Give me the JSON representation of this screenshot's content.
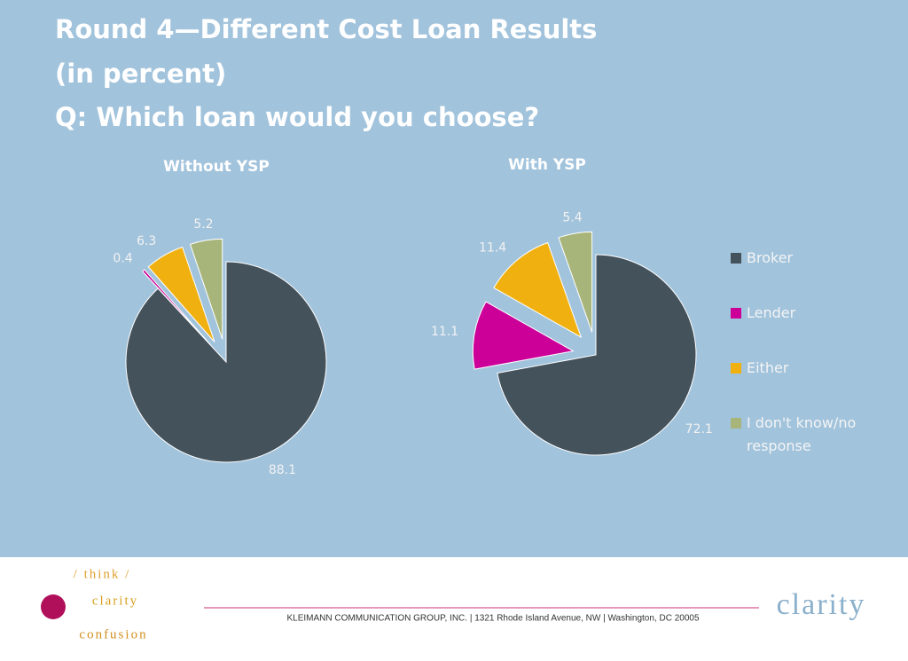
{
  "title": [
    "Round 4—Different Cost Loan Results",
    "(in percent)",
    "Q: Which loan would you choose?"
  ],
  "chart_data": [
    {
      "type": "pie",
      "title": "Without YSP",
      "categories": [
        "Broker",
        "Lender",
        "Either",
        "I don't know/no response"
      ],
      "values": [
        88.1,
        0.4,
        6.3,
        5.2
      ],
      "colors": [
        "#44525c",
        "#cc0099",
        "#f0b010",
        "#a8b57a"
      ]
    },
    {
      "type": "pie",
      "title": "With YSP",
      "categories": [
        "Broker",
        "Lender",
        "Either",
        "I don't know/no response"
      ],
      "values": [
        72.1,
        11.1,
        11.4,
        5.4
      ],
      "colors": [
        "#44525c",
        "#cc0099",
        "#f0b010",
        "#a8b57a"
      ]
    }
  ],
  "footer": {
    "address": "KLEIMANN COMMUNICATION GROUP, INC. | 1321 Rhode Island Avenue, NW | Washington, DC 20005",
    "brand": "clarity",
    "logo_words": [
      "/ think /",
      "clarity",
      "confusion"
    ]
  }
}
